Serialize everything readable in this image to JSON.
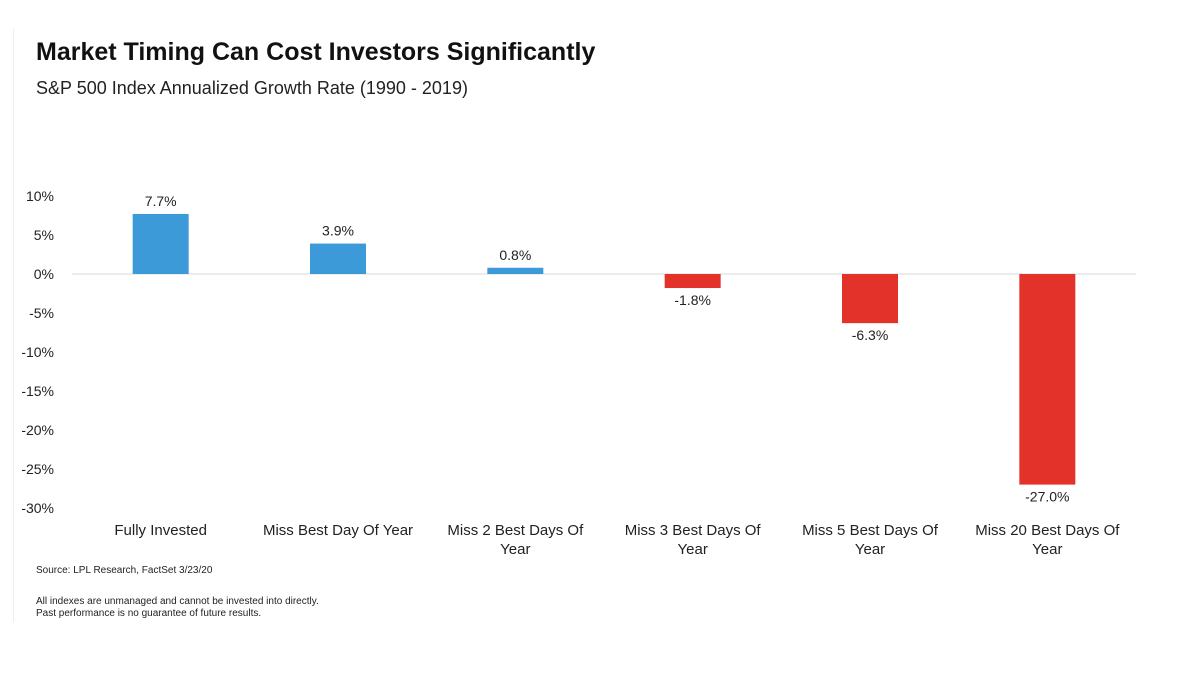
{
  "chart_data": {
    "type": "bar",
    "title": "Market Timing Can Cost Investors Significantly",
    "subtitle": "S&P 500 Index Annualized Growth Rate (1990 - 2019)",
    "xlabel": "",
    "ylabel": "",
    "ylim": [
      -30,
      10
    ],
    "yticks": [
      10,
      5,
      0,
      -5,
      -10,
      -15,
      -20,
      -25,
      -30
    ],
    "ytick_labels": [
      "10%",
      "5%",
      "0%",
      "-5%",
      "-10%",
      "-15%",
      "-20%",
      "-25%",
      "-30%"
    ],
    "categories": [
      [
        "Fully Invested"
      ],
      [
        "Miss Best Day Of Year"
      ],
      [
        "Miss 2 Best Days Of",
        "Year"
      ],
      [
        "Miss 3 Best Days Of",
        "Year"
      ],
      [
        "Miss 5 Best Days Of",
        "Year"
      ],
      [
        "Miss 20 Best Days Of",
        "Year"
      ]
    ],
    "values": [
      7.7,
      3.9,
      0.8,
      -1.8,
      -6.3,
      -27.0
    ],
    "data_labels": [
      "7.7%",
      "3.9%",
      "0.8%",
      "-1.8%",
      "-6.3%",
      "-27.0%"
    ],
    "colors": {
      "positive": "#3d9ad9",
      "negative": "#e3322a",
      "zero_line": "#d9d9d9"
    },
    "grid": false,
    "legend": "none"
  },
  "notes": {
    "source": "Source: LPL Research, FactSet 3/23/20",
    "disclaimer": [
      "All indexes are unmanaged and cannot be invested into directly.",
      "Past performance is no guarantee of future results."
    ]
  }
}
